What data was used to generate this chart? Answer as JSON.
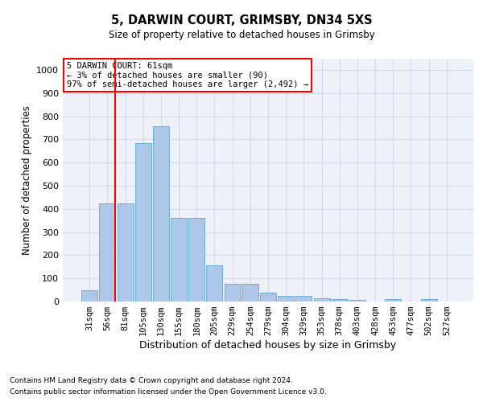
{
  "title1": "5, DARWIN COURT, GRIMSBY, DN34 5XS",
  "title2": "Size of property relative to detached houses in Grimsby",
  "xlabel": "Distribution of detached houses by size in Grimsby",
  "ylabel": "Number of detached properties",
  "categories": [
    "31sqm",
    "56sqm",
    "81sqm",
    "105sqm",
    "130sqm",
    "155sqm",
    "180sqm",
    "205sqm",
    "229sqm",
    "254sqm",
    "279sqm",
    "304sqm",
    "329sqm",
    "353sqm",
    "378sqm",
    "403sqm",
    "428sqm",
    "453sqm",
    "477sqm",
    "502sqm",
    "527sqm"
  ],
  "values": [
    50,
    425,
    425,
    685,
    755,
    360,
    360,
    155,
    75,
    75,
    38,
    25,
    25,
    15,
    10,
    8,
    0,
    10,
    0,
    10,
    0
  ],
  "bar_color": "#aec6e8",
  "bar_edge_color": "#6aaed6",
  "grid_color": "#d0d8e8",
  "background_color": "#eef2f8",
  "red_line_x": 1.45,
  "annotation_text": "5 DARWIN COURT: 61sqm\n← 3% of detached houses are smaller (90)\n97% of semi-detached houses are larger (2,492) →",
  "ylim": [
    0,
    1050
  ],
  "yticks": [
    0,
    100,
    200,
    300,
    400,
    500,
    600,
    700,
    800,
    900,
    1000
  ],
  "footnote1": "Contains HM Land Registry data © Crown copyright and database right 2024.",
  "footnote2": "Contains public sector information licensed under the Open Government Licence v3.0."
}
